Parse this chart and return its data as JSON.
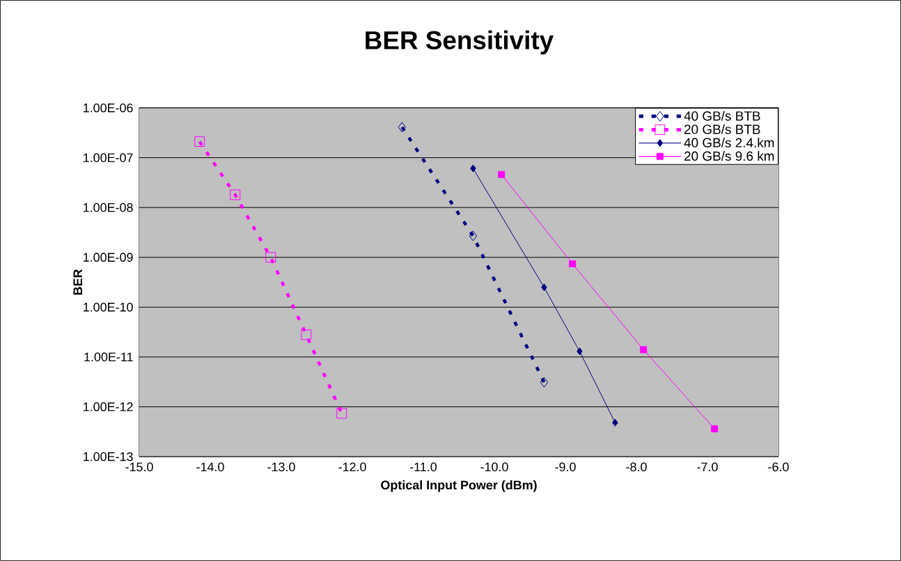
{
  "chart_data": {
    "type": "line",
    "title": "BER Sensitivity",
    "xlabel": "Optical Input Power (dBm)",
    "ylabel": "BER",
    "log": "y",
    "xlim": [
      -15,
      -6
    ],
    "ylim": [
      1e-13,
      1e-06
    ],
    "xticks": [
      {
        "value": -15,
        "label": "-15.0"
      },
      {
        "value": -14,
        "label": "-14.0"
      },
      {
        "value": -13,
        "label": "-13.0"
      },
      {
        "value": -12,
        "label": "-12.0"
      },
      {
        "value": -11,
        "label": "-11.0"
      },
      {
        "value": -10,
        "label": "-10.0"
      },
      {
        "value": -9,
        "label": "-9.0"
      },
      {
        "value": -8,
        "label": "-8.0"
      },
      {
        "value": -7,
        "label": "-7.0"
      },
      {
        "value": -6,
        "label": "-6.0"
      }
    ],
    "yticks": [
      {
        "value": 1e-13,
        "label": "1.00E-13"
      },
      {
        "value": 1e-12,
        "label": "1.00E-12"
      },
      {
        "value": 1e-11,
        "label": "1.00E-11"
      },
      {
        "value": 1e-10,
        "label": "1.00E-10"
      },
      {
        "value": 1e-09,
        "label": "1.00E-09"
      },
      {
        "value": 1e-08,
        "label": "1.00E-08"
      },
      {
        "value": 1e-07,
        "label": "1.00E-07"
      },
      {
        "value": 1e-06,
        "label": "1.00E-06"
      }
    ],
    "grid": "y",
    "legend": "top right",
    "series": [
      {
        "name": "40 GB/s BTB",
        "color": "#000080",
        "marker": "diamond",
        "line_style": "dashed",
        "x": [
          -11.3,
          -10.3,
          -9.3
        ],
        "values": [
          4.1e-07,
          2.7e-09,
          3.1e-12
        ]
      },
      {
        "name": "20 GB/s BTB",
        "color": "#ff00ff",
        "marker": "square",
        "line_style": "dashed",
        "x": [
          -14.15,
          -13.65,
          -13.15,
          -12.65,
          -12.15
        ],
        "values": [
          2.1e-07,
          1.8e-08,
          1e-09,
          2.8e-11,
          7.4e-13
        ]
      },
      {
        "name": "40 GB/s 2.4.km",
        "color": "#000080",
        "marker": "diamond",
        "line_style": "solid",
        "x": [
          -10.3,
          -9.3,
          -8.8,
          -8.3
        ],
        "values": [
          6.1e-08,
          2.5e-10,
          1.3e-11,
          4.8e-13
        ]
      },
      {
        "name": "20 GB/s 9.6 km",
        "color": "#ff00ff",
        "marker": "square",
        "line_style": "solid",
        "x": [
          -9.9,
          -8.9,
          -7.9,
          -6.9
        ],
        "values": [
          4.6e-08,
          7.4e-10,
          1.4e-11,
          3.6e-13
        ]
      }
    ]
  }
}
